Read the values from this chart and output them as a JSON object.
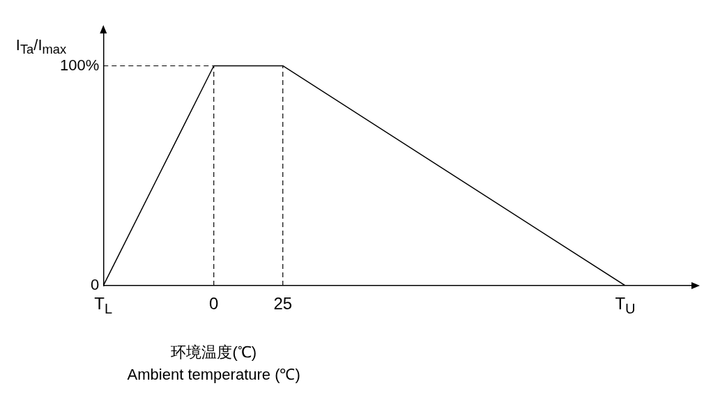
{
  "chart_data": {
    "type": "line",
    "xlabel": "环境温度(℃)\nAmbient temperature (℃)",
    "ylabel": "I$_{Ta}$/I$_{max}$",
    "xlim": [
      -40,
      174
    ],
    "ylim": [
      0,
      116
    ],
    "xticks": [
      {
        "value": -40,
        "label": "T$_{L}$"
      },
      0,
      25,
      {
        "value": 149,
        "label": "T$_{U}$"
      }
    ],
    "yticks": [
      0,
      {
        "value": 100,
        "label": "100%"
      }
    ],
    "series": [
      {
        "color": "#000000",
        "x": [
          -40,
          0,
          25,
          149
        ],
        "values": [
          0,
          100,
          100,
          0
        ]
      }
    ],
    "ref_lines": [
      {
        "axis": "x",
        "value": 0,
        "line_style": "dashed",
        "color": "#000000"
      },
      {
        "axis": "x",
        "value": 25,
        "line_style": "dashed",
        "color": "#000000"
      },
      {
        "axis": "y",
        "value": 100,
        "line_style": "dashed",
        "color": "#000000"
      }
    ],
    "grid": false,
    "legend": false,
    "marker": "none",
    "line_style": "solid"
  }
}
